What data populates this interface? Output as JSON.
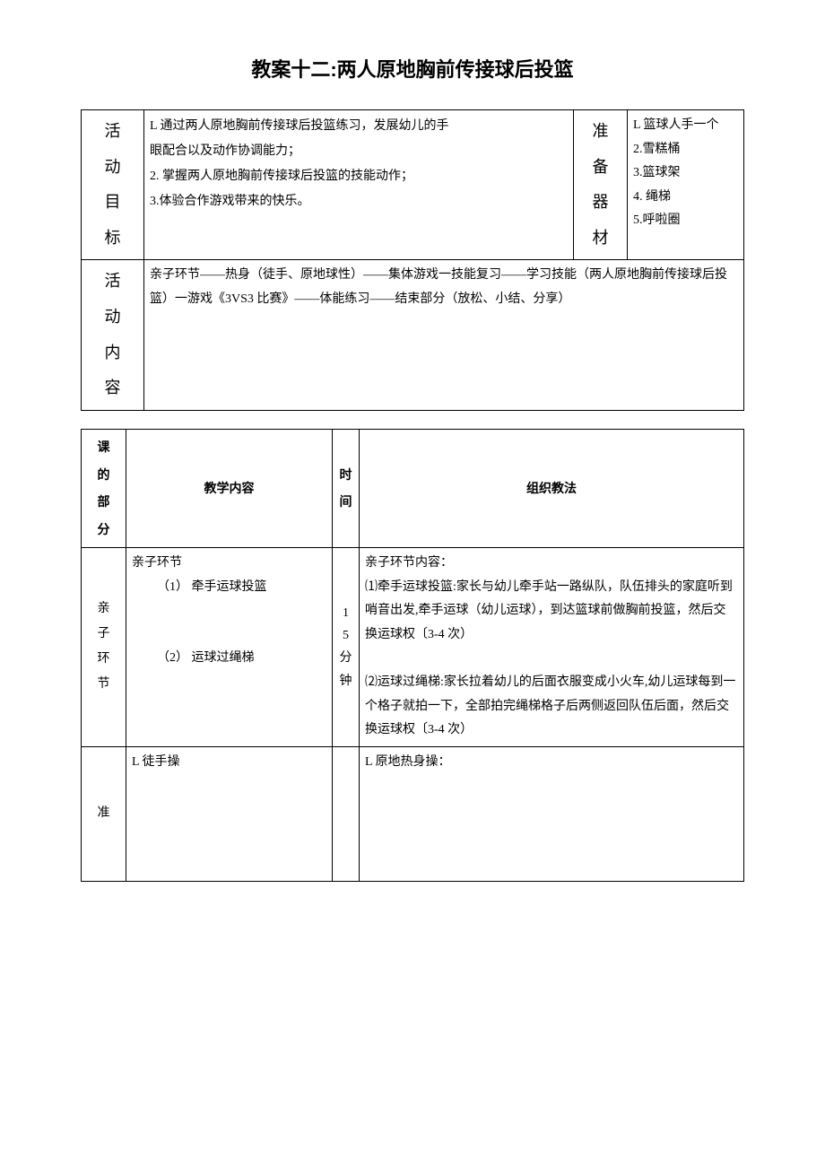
{
  "title": "教案十二:两人原地胸前传接球后投篮",
  "table1": {
    "row1": {
      "label": "活动目标",
      "goals": [
        "L 通过两人原地胸前传接球后投篮练习，发展幼儿的手",
        "眼配合以及动作协调能力；",
        "2. 掌握两人原地胸前传接球后投篮的技能动作；",
        "3.体验合作游戏带来的快乐。"
      ],
      "prepLabel": "准备器材",
      "equipment": [
        "L 篮球人手一个",
        "2.雪糕桶",
        "3.篮球架",
        "4. 绳梯",
        "5.呼啦圈"
      ]
    },
    "row2": {
      "label": "活动内容",
      "content": "亲子环节——热身（徒手、原地球性）——集体游戏一技能复习——学习技能（两人原地胸前传接球后投篮）一游戏《3VS3 比赛》——体能练习——结束部分（放松、小结、分享）"
    }
  },
  "table2": {
    "headers": {
      "section": "课的部分",
      "content": "教学内容",
      "time": "时间",
      "method": "组织教法"
    },
    "rows": [
      {
        "section": "亲子环节",
        "content": {
          "l1": "亲子环节",
          "l2": "（1） 牵手运球投篮",
          "l3": "（2） 运球过绳梯"
        },
        "time": "15分钟",
        "method": {
          "p1": "亲子环节内容：",
          "p2": "⑴牵手运球投篮:家长与幼儿牵手站一路纵队，队伍排头的家庭听到哨音出发,牵手运球（幼儿运球），到达篮球前做胸前投篮，然后交换运球权〔3-4 次）",
          "p3": "⑵运球过绳梯:家长拉着幼儿的后面衣服变成小火车,幼儿运球每到一个格子就拍一下，全部拍完绳梯格子后两侧返回队伍后面，然后交换运球权〔3-4 次）"
        }
      },
      {
        "section": "准",
        "content": "L 徒手操",
        "method": "L 原地热身操："
      }
    ]
  },
  "colors": {
    "text": "#000000",
    "background": "#ffffff",
    "border": "#000000"
  },
  "fonts": {
    "title_size": 22,
    "label_size": 18,
    "body_size": 14
  }
}
